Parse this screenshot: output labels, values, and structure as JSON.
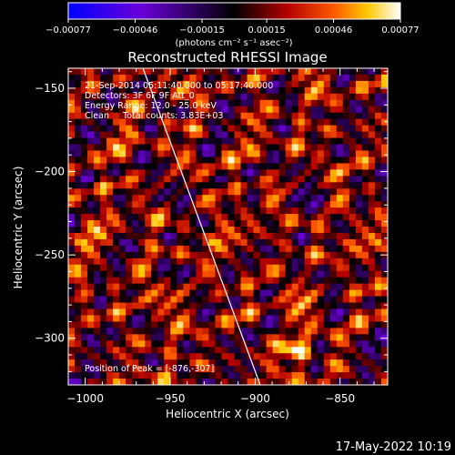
{
  "chart_data": {
    "type": "heatmap",
    "title": "Reconstructed RHESSI Image",
    "xlabel": "Heliocentric X (arcsec)",
    "ylabel": "Heliocentric Y (arcsec)",
    "xlim": [
      -1010,
      -822
    ],
    "ylim": [
      -328,
      -138
    ],
    "x_ticks": [
      -1000,
      -950,
      -900,
      -850
    ],
    "x_tick_labels": [
      "−1000",
      "−950",
      "−900",
      "−850"
    ],
    "y_ticks": [
      -150,
      -200,
      -250,
      -300
    ],
    "y_tick_labels": [
      "−150",
      "−200",
      "−250",
      "−300"
    ],
    "colorbar": {
      "min": -0.00077,
      "max": 0.00077,
      "ticks": [
        -0.00077,
        -0.00046,
        -0.00015,
        0.00015,
        0.00046,
        0.00077
      ],
      "tick_labels": [
        "−0.00077",
        "−0.00046",
        "−0.00015",
        "0.00015",
        "0.00046",
        "0.00077"
      ],
      "unit_label": "(photons cm⁻² s⁻¹ asec⁻²)",
      "colors": [
        "#0000ff",
        "#6a00d8",
        "#000000",
        "#b40000",
        "#ff5a00",
        "#ffc800",
        "#ffffff"
      ]
    },
    "annotations": [
      "21-Sep-2014 05:11:40.000 to 05:17:40.000",
      "Detectors: 3F 6F 9F Att_0",
      "Energy Range: 12.0 - 25.0 keV",
      "Clean     Total counts: 3.83E+03"
    ],
    "peak_label": "Position of Peak = [-876,-307]",
    "peak": {
      "x": -876,
      "y": -307
    },
    "limb_line": [
      [
        -966,
        -138
      ],
      [
        -897,
        -328
      ]
    ]
  },
  "footer": {
    "timestamp": "17-May-2022 10:19"
  }
}
